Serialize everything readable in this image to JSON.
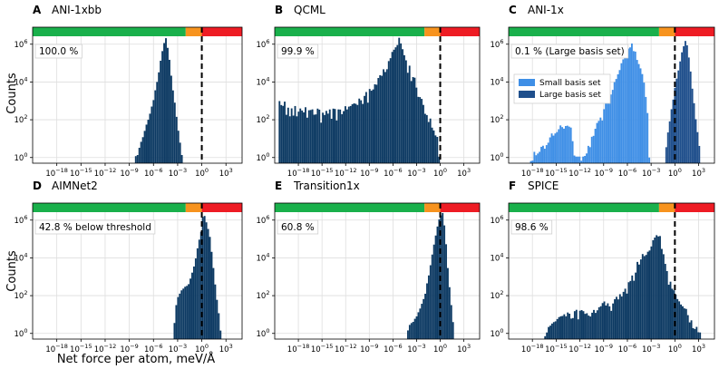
{
  "figure": {
    "ylabel": "Counts",
    "xlabel": "Net force per atom, meV/Å"
  },
  "colors": {
    "bar": "#0d3a63",
    "bar_small": "#3f8fe6",
    "bar_large": "#1f4f8c",
    "band_green": "#19b04b",
    "band_orange": "#f7931e",
    "band_red": "#ee1c24",
    "threshold": "#000000"
  },
  "chart_data": [
    {
      "type": "bar",
      "panel_letter": "A",
      "title": "ANI-1xbb",
      "annotation": "100.0 %",
      "xscale": "log10",
      "yscale": "log10",
      "xlim_exp": [
        -21,
        5
      ],
      "ylim_exp": [
        -0.3,
        6.9
      ],
      "x_ticks": [
        "10^-18",
        "10^-15",
        "10^-12",
        "10^-9",
        "10^-6",
        "10^-3",
        "10^0",
        "10^3"
      ],
      "y_ticks": [
        "10^0",
        "10^2",
        "10^4",
        "10^6"
      ],
      "threshold_x": 1,
      "grid": true,
      "bands": [
        {
          "color": "green",
          "from_exp": -21,
          "to_exp": -2
        },
        {
          "color": "orange",
          "from_exp": -2,
          "to_exp": 0
        },
        {
          "color": "red",
          "from_exp": 0,
          "to_exp": 5
        }
      ],
      "series": [
        {
          "shape": [
            [
              -8.3,
              0
            ],
            [
              -8,
              0.2
            ],
            [
              -7.5,
              0.9
            ],
            [
              -7,
              1.6
            ],
            [
              -6.5,
              2.3
            ],
            [
              -6,
              3.1
            ],
            [
              -5.7,
              3.8
            ],
            [
              -5.3,
              4.6
            ],
            [
              -5,
              5.5
            ],
            [
              -4.7,
              6.1
            ],
            [
              -4.5,
              6.4
            ],
            [
              -4.3,
              6.1
            ],
            [
              -4,
              5.2
            ],
            [
              -3.5,
              3.4
            ],
            [
              -3,
              1.8
            ],
            [
              -2.6,
              0.6
            ],
            [
              -2.4,
              0
            ]
          ]
        }
      ]
    },
    {
      "type": "bar",
      "panel_letter": "B",
      "title": "QCML",
      "annotation": "99.9 %",
      "xscale": "log10",
      "yscale": "log10",
      "xlim_exp": [
        -21,
        5
      ],
      "ylim_exp": [
        -0.3,
        6.9
      ],
      "x_ticks": [
        "10^-18",
        "10^-15",
        "10^-12",
        "10^-9",
        "10^-6",
        "10^-3",
        "10^0",
        "10^3"
      ],
      "y_ticks": [
        "10^0",
        "10^2",
        "10^4",
        "10^6"
      ],
      "threshold_x": 1,
      "grid": true,
      "bands": [
        {
          "color": "green",
          "from_exp": -21,
          "to_exp": -2
        },
        {
          "color": "orange",
          "from_exp": -2,
          "to_exp": 0
        },
        {
          "color": "red",
          "from_exp": 0,
          "to_exp": 5
        }
      ],
      "series": [
        {
          "noisy_floor": 1.0,
          "shape": [
            [
              -20.5,
              3.3
            ],
            [
              -19,
              3
            ],
            [
              -17,
              2.8
            ],
            [
              -15,
              2.7
            ],
            [
              -13,
              2.8
            ],
            [
              -11,
              3.1
            ],
            [
              -10,
              3.4
            ],
            [
              -9,
              3.8
            ],
            [
              -8,
              4.3
            ],
            [
              -7,
              5
            ],
            [
              -6,
              5.9
            ],
            [
              -5.5,
              6.3
            ],
            [
              -5.2,
              6.8
            ],
            [
              -5,
              6.5
            ],
            [
              -4.5,
              5.8
            ],
            [
              -4,
              5
            ],
            [
              -3,
              4
            ],
            [
              -2,
              3
            ],
            [
              -1,
              2
            ],
            [
              -0.3,
              1
            ],
            [
              0,
              0
            ]
          ]
        }
      ]
    },
    {
      "type": "bar",
      "panel_letter": "C",
      "title": "ANI-1x",
      "annotation": "0.1 % (Large basis set)",
      "xscale": "log10",
      "yscale": "log10",
      "xlim_exp": [
        -21,
        5
      ],
      "ylim_exp": [
        -0.3,
        6.9
      ],
      "x_ticks": [
        "10^-18",
        "10^-15",
        "10^-12",
        "10^-9",
        "10^-6",
        "10^-3",
        "10^0",
        "10^3"
      ],
      "y_ticks": [
        "10^0",
        "10^2",
        "10^4",
        "10^6"
      ],
      "threshold_x": 1,
      "grid": true,
      "legend": {
        "placement": "upper-left",
        "entries": [
          "Small basis set",
          "Large basis set"
        ]
      },
      "bands": [
        {
          "color": "green",
          "from_exp": -21,
          "to_exp": -2
        },
        {
          "color": "orange",
          "from_exp": -2,
          "to_exp": 0
        },
        {
          "color": "red",
          "from_exp": 0,
          "to_exp": 5
        }
      ],
      "series": [
        {
          "name": "Small basis set",
          "color_key": "bar_small",
          "noisy_floor": 0.8,
          "shape": [
            [
              -18.3,
              0
            ],
            [
              -17.5,
              0.5
            ],
            [
              -16,
              1.2
            ],
            [
              -15,
              1.6
            ],
            [
              -14,
              1.9
            ],
            [
              -13.3,
              2
            ],
            [
              -12.8,
              1
            ],
            [
              -12.6,
              0
            ],
            [
              -11.8,
              0
            ],
            [
              -11,
              0.7
            ],
            [
              -10,
              1.8
            ],
            [
              -9,
              2.8
            ],
            [
              -8,
              3.8
            ],
            [
              -7,
              5
            ],
            [
              -6,
              6
            ],
            [
              -5.5,
              6.3
            ],
            [
              -5,
              5.8
            ],
            [
              -4,
              4.5
            ],
            [
              -3.5,
              3
            ],
            [
              -3.2,
              0
            ]
          ]
        },
        {
          "name": "Large basis set",
          "color_key": "bar_large",
          "shape": [
            [
              -1.2,
              0
            ],
            [
              -1,
              1
            ],
            [
              -0.5,
              2.4
            ],
            [
              0,
              3.7
            ],
            [
              0.5,
              4.8
            ],
            [
              1,
              5.8
            ],
            [
              1.3,
              6.3
            ],
            [
              1.6,
              6
            ],
            [
              2,
              4.6
            ],
            [
              2.5,
              2.6
            ],
            [
              3,
              1
            ],
            [
              3.3,
              0
            ]
          ]
        }
      ]
    },
    {
      "type": "bar",
      "panel_letter": "D",
      "title": "AIMNet2",
      "annotation": "42.8 % below threshold",
      "xscale": "log10",
      "yscale": "log10",
      "xlim_exp": [
        -21,
        5
      ],
      "ylim_exp": [
        -0.3,
        6.9
      ],
      "x_ticks": [
        "10^-18",
        "10^-15",
        "10^-12",
        "10^-9",
        "10^-6",
        "10^-3",
        "10^0",
        "10^3"
      ],
      "y_ticks": [
        "10^0",
        "10^2",
        "10^4",
        "10^6"
      ],
      "threshold_x": 1,
      "grid": true,
      "bands": [
        {
          "color": "green",
          "from_exp": -21,
          "to_exp": -2
        },
        {
          "color": "orange",
          "from_exp": -2,
          "to_exp": 0
        },
        {
          "color": "red",
          "from_exp": 0,
          "to_exp": 5
        }
      ],
      "series": [
        {
          "shape": [
            [
              -3.5,
              0
            ],
            [
              -3.3,
              1.2
            ],
            [
              -3,
              1.9
            ],
            [
              -2.5,
              2.3
            ],
            [
              -2,
              2.5
            ],
            [
              -1.5,
              2.8
            ],
            [
              -1,
              3.5
            ],
            [
              -0.5,
              4.6
            ],
            [
              0,
              5.7
            ],
            [
              0.2,
              6.5
            ],
            [
              0.5,
              6.1
            ],
            [
              1,
              5.2
            ],
            [
              1.5,
              3.3
            ],
            [
              2,
              1.5
            ],
            [
              2.4,
              0
            ]
          ]
        }
      ]
    },
    {
      "type": "bar",
      "panel_letter": "E",
      "title": "Transition1x",
      "annotation": "60.8 %",
      "xscale": "log10",
      "yscale": "log10",
      "xlim_exp": [
        -21,
        5
      ],
      "ylim_exp": [
        -0.3,
        6.9
      ],
      "x_ticks": [
        "10^-18",
        "10^-15",
        "10^-12",
        "10^-9",
        "10^-6",
        "10^-3",
        "10^0",
        "10^3"
      ],
      "y_ticks": [
        "10^0",
        "10^2",
        "10^4",
        "10^6"
      ],
      "threshold_x": 1,
      "grid": true,
      "bands": [
        {
          "color": "green",
          "from_exp": -21,
          "to_exp": -2
        },
        {
          "color": "orange",
          "from_exp": -2,
          "to_exp": 0
        },
        {
          "color": "red",
          "from_exp": 0,
          "to_exp": 5
        }
      ],
      "series": [
        {
          "shape": [
            [
              -4.2,
              0
            ],
            [
              -4,
              0.4
            ],
            [
              -3,
              0.9
            ],
            [
              -2,
              2
            ],
            [
              -1.5,
              3
            ],
            [
              -1,
              4.2
            ],
            [
              -0.5,
              5.4
            ],
            [
              0,
              6.3
            ],
            [
              0.3,
              6.5
            ],
            [
              0.6,
              5.6
            ],
            [
              1,
              3.4
            ],
            [
              1.5,
              1.2
            ],
            [
              1.8,
              0
            ]
          ]
        }
      ]
    },
    {
      "type": "bar",
      "panel_letter": "F",
      "title": "SPICE",
      "annotation": "98.6 %",
      "xscale": "log10",
      "yscale": "log10",
      "xlim_exp": [
        -21,
        5
      ],
      "ylim_exp": [
        -0.3,
        6.9
      ],
      "x_ticks": [
        "10^-18",
        "10^-15",
        "10^-12",
        "10^-9",
        "10^-6",
        "10^-3",
        "10^0",
        "10^3"
      ],
      "y_ticks": [
        "10^0",
        "10^2",
        "10^4",
        "10^6"
      ],
      "threshold_x": 1,
      "grid": true,
      "bands": [
        {
          "color": "green",
          "from_exp": -21,
          "to_exp": -2
        },
        {
          "color": "orange",
          "from_exp": -2,
          "to_exp": 0
        },
        {
          "color": "red",
          "from_exp": 0,
          "to_exp": 5
        }
      ],
      "series": [
        {
          "noisy_floor": 0.9,
          "shape": [
            [
              -16.5,
              0
            ],
            [
              -16,
              0.5
            ],
            [
              -15,
              1
            ],
            [
              -14,
              1.4
            ],
            [
              -13,
              1.2
            ],
            [
              -12,
              1.6
            ],
            [
              -11,
              1.4
            ],
            [
              -10,
              1.5
            ],
            [
              -9,
              1.9
            ],
            [
              -8,
              1.8
            ],
            [
              -7,
              2.3
            ],
            [
              -6,
              2.9
            ],
            [
              -5,
              3.6
            ],
            [
              -4,
              4.3
            ],
            [
              -3,
              5
            ],
            [
              -2.5,
              5.5
            ],
            [
              -2,
              5.4
            ],
            [
              -1.5,
              4.6
            ],
            [
              -1,
              3.6
            ],
            [
              0,
              2.4
            ],
            [
              1,
              1.7
            ],
            [
              2,
              1
            ],
            [
              2.8,
              0.6
            ],
            [
              3.2,
              0
            ]
          ]
        }
      ]
    }
  ]
}
